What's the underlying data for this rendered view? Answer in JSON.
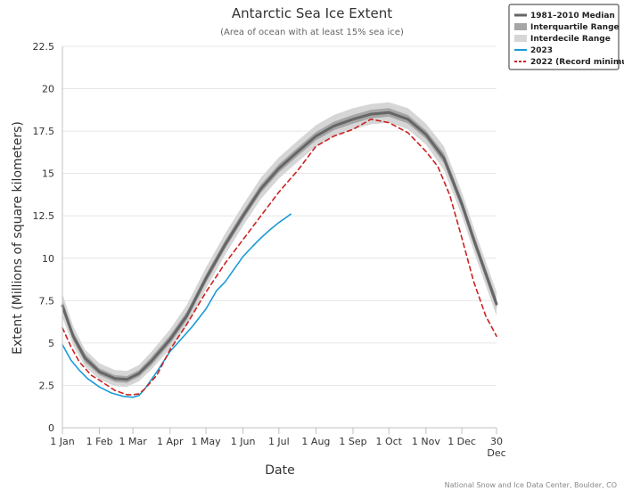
{
  "chart_data": {
    "type": "line",
    "title": "Antarctic Sea Ice Extent",
    "subtitle": "(Area of ocean with at least 15% sea ice)",
    "xlabel": "Date",
    "ylabel": "Extent (Millions of square kilometers)",
    "ylim": [
      0,
      22.5
    ],
    "yticks": [
      0,
      2.5,
      5,
      7.5,
      10,
      12.5,
      15,
      17.5,
      20,
      22.5
    ],
    "ytick_labels": [
      "0",
      "2.5",
      "5",
      "7.5",
      "10",
      "12.5",
      "15",
      "17.5",
      "20",
      "22.5"
    ],
    "xlim": [
      1,
      364
    ],
    "xticks": [
      {
        "day": 1,
        "label": "1 Jan"
      },
      {
        "day": 32,
        "label": "1 Feb"
      },
      {
        "day": 60,
        "label": "1 Mar"
      },
      {
        "day": 91,
        "label": "1 Apr"
      },
      {
        "day": 121,
        "label": "1 May"
      },
      {
        "day": 152,
        "label": "1 Jun"
      },
      {
        "day": 182,
        "label": "1 Jul"
      },
      {
        "day": 213,
        "label": "1 Aug"
      },
      {
        "day": 244,
        "label": "1 Sep"
      },
      {
        "day": 274,
        "label": "1 Oct"
      },
      {
        "day": 305,
        "label": "1 Nov"
      },
      {
        "day": 335,
        "label": "1 Dec"
      },
      {
        "day": 364,
        "label": "30\nDec"
      }
    ],
    "grid": true,
    "legend_position": "top-right",
    "credit": "National Snow and Ice Data Center, Boulder, CO",
    "legend": [
      {
        "label": "1981–2010 Median",
        "kind": "line",
        "color": "#666666"
      },
      {
        "label": "Interquartile Range",
        "kind": "band",
        "color": "#a6a6a6"
      },
      {
        "label": "Interdecile Range",
        "kind": "band",
        "color": "#d6d6d6"
      },
      {
        "label": "2023",
        "kind": "line",
        "color": "#1a9bd7"
      },
      {
        "label": "2022 (Record minimum)",
        "kind": "dashed",
        "color": "#cc2222"
      }
    ],
    "median": {
      "color": "#666666",
      "x": [
        1,
        10,
        20,
        32,
        45,
        55,
        65,
        75,
        91,
        105,
        121,
        137,
        152,
        167,
        182,
        198,
        213,
        228,
        244,
        259,
        274,
        290,
        305,
        320,
        335,
        345,
        355,
        364
      ],
      "y": [
        7.2,
        5.4,
        4.1,
        3.3,
        2.9,
        2.85,
        3.2,
        3.9,
        5.2,
        6.6,
        8.8,
        10.8,
        12.5,
        14.1,
        15.3,
        16.3,
        17.2,
        17.8,
        18.2,
        18.5,
        18.6,
        18.2,
        17.3,
        15.9,
        13.2,
        11.1,
        9.1,
        7.3
      ]
    },
    "iqr": {
      "color": "#a6a6a6",
      "x": [
        1,
        10,
        20,
        32,
        45,
        55,
        65,
        75,
        91,
        105,
        121,
        137,
        152,
        167,
        182,
        198,
        213,
        228,
        244,
        259,
        274,
        290,
        305,
        320,
        335,
        345,
        355,
        364
      ],
      "lower": [
        6.9,
        5.15,
        3.85,
        3.1,
        2.7,
        2.65,
        3.0,
        3.65,
        4.95,
        6.35,
        8.55,
        10.55,
        12.25,
        13.85,
        15.05,
        16.05,
        16.95,
        17.55,
        17.95,
        18.25,
        18.35,
        17.95,
        17.05,
        15.6,
        12.9,
        10.8,
        8.8,
        7.0
      ],
      "upper": [
        7.5,
        5.65,
        4.35,
        3.5,
        3.1,
        3.05,
        3.4,
        4.15,
        5.45,
        6.85,
        9.05,
        11.05,
        12.75,
        14.35,
        15.55,
        16.55,
        17.45,
        18.05,
        18.45,
        18.75,
        18.85,
        18.45,
        17.55,
        16.2,
        13.5,
        11.4,
        9.4,
        7.6
      ]
    },
    "idr": {
      "color": "#d6d6d6",
      "x": [
        1,
        10,
        20,
        32,
        45,
        55,
        65,
        75,
        91,
        105,
        121,
        137,
        152,
        167,
        182,
        198,
        213,
        228,
        244,
        259,
        274,
        290,
        305,
        320,
        335,
        345,
        355,
        364
      ],
      "lower": [
        6.5,
        4.85,
        3.6,
        2.85,
        2.45,
        2.4,
        2.75,
        3.4,
        4.65,
        6.0,
        8.2,
        10.2,
        11.9,
        13.5,
        14.7,
        15.7,
        16.6,
        17.2,
        17.6,
        17.9,
        18.0,
        17.6,
        16.7,
        15.2,
        12.5,
        10.4,
        8.4,
        6.6
      ],
      "upper": [
        7.9,
        6.0,
        4.6,
        3.8,
        3.4,
        3.35,
        3.7,
        4.45,
        5.8,
        7.25,
        9.45,
        11.45,
        13.15,
        14.75,
        15.95,
        16.95,
        17.85,
        18.45,
        18.85,
        19.1,
        19.2,
        18.85,
        17.95,
        16.6,
        13.9,
        11.8,
        9.8,
        8.0
      ]
    },
    "series": [
      {
        "name": "2023",
        "color": "#1a9bd7",
        "dashed": false,
        "x": [
          1,
          8,
          15,
          22,
          32,
          42,
          52,
          60,
          65,
          70,
          75,
          80,
          91,
          100,
          110,
          121,
          130,
          137,
          145,
          152,
          160,
          167,
          175,
          182,
          188,
          192
        ],
        "y": [
          4.9,
          4.0,
          3.4,
          2.9,
          2.4,
          2.05,
          1.85,
          1.8,
          1.9,
          2.3,
          2.8,
          3.3,
          4.5,
          5.2,
          6.0,
          7.0,
          8.1,
          8.6,
          9.4,
          10.1,
          10.7,
          11.2,
          11.7,
          12.1,
          12.4,
          12.6
        ]
      },
      {
        "name": "2022 (Record minimum)",
        "color": "#cc2222",
        "dashed": true,
        "x": [
          1,
          8,
          15,
          25,
          32,
          45,
          55,
          60,
          65,
          70,
          75,
          80,
          91,
          105,
          121,
          137,
          152,
          167,
          182,
          198,
          213,
          228,
          244,
          259,
          274,
          290,
          305,
          315,
          325,
          335,
          345,
          355,
          364
        ],
        "y": [
          5.9,
          4.8,
          3.9,
          3.1,
          2.8,
          2.2,
          1.95,
          1.95,
          2.0,
          2.3,
          2.7,
          3.1,
          4.6,
          6.1,
          8.0,
          9.7,
          11.1,
          12.5,
          13.9,
          15.2,
          16.6,
          17.2,
          17.6,
          18.2,
          18.0,
          17.4,
          16.3,
          15.4,
          13.7,
          11.2,
          8.6,
          6.6,
          5.4
        ]
      }
    ]
  }
}
